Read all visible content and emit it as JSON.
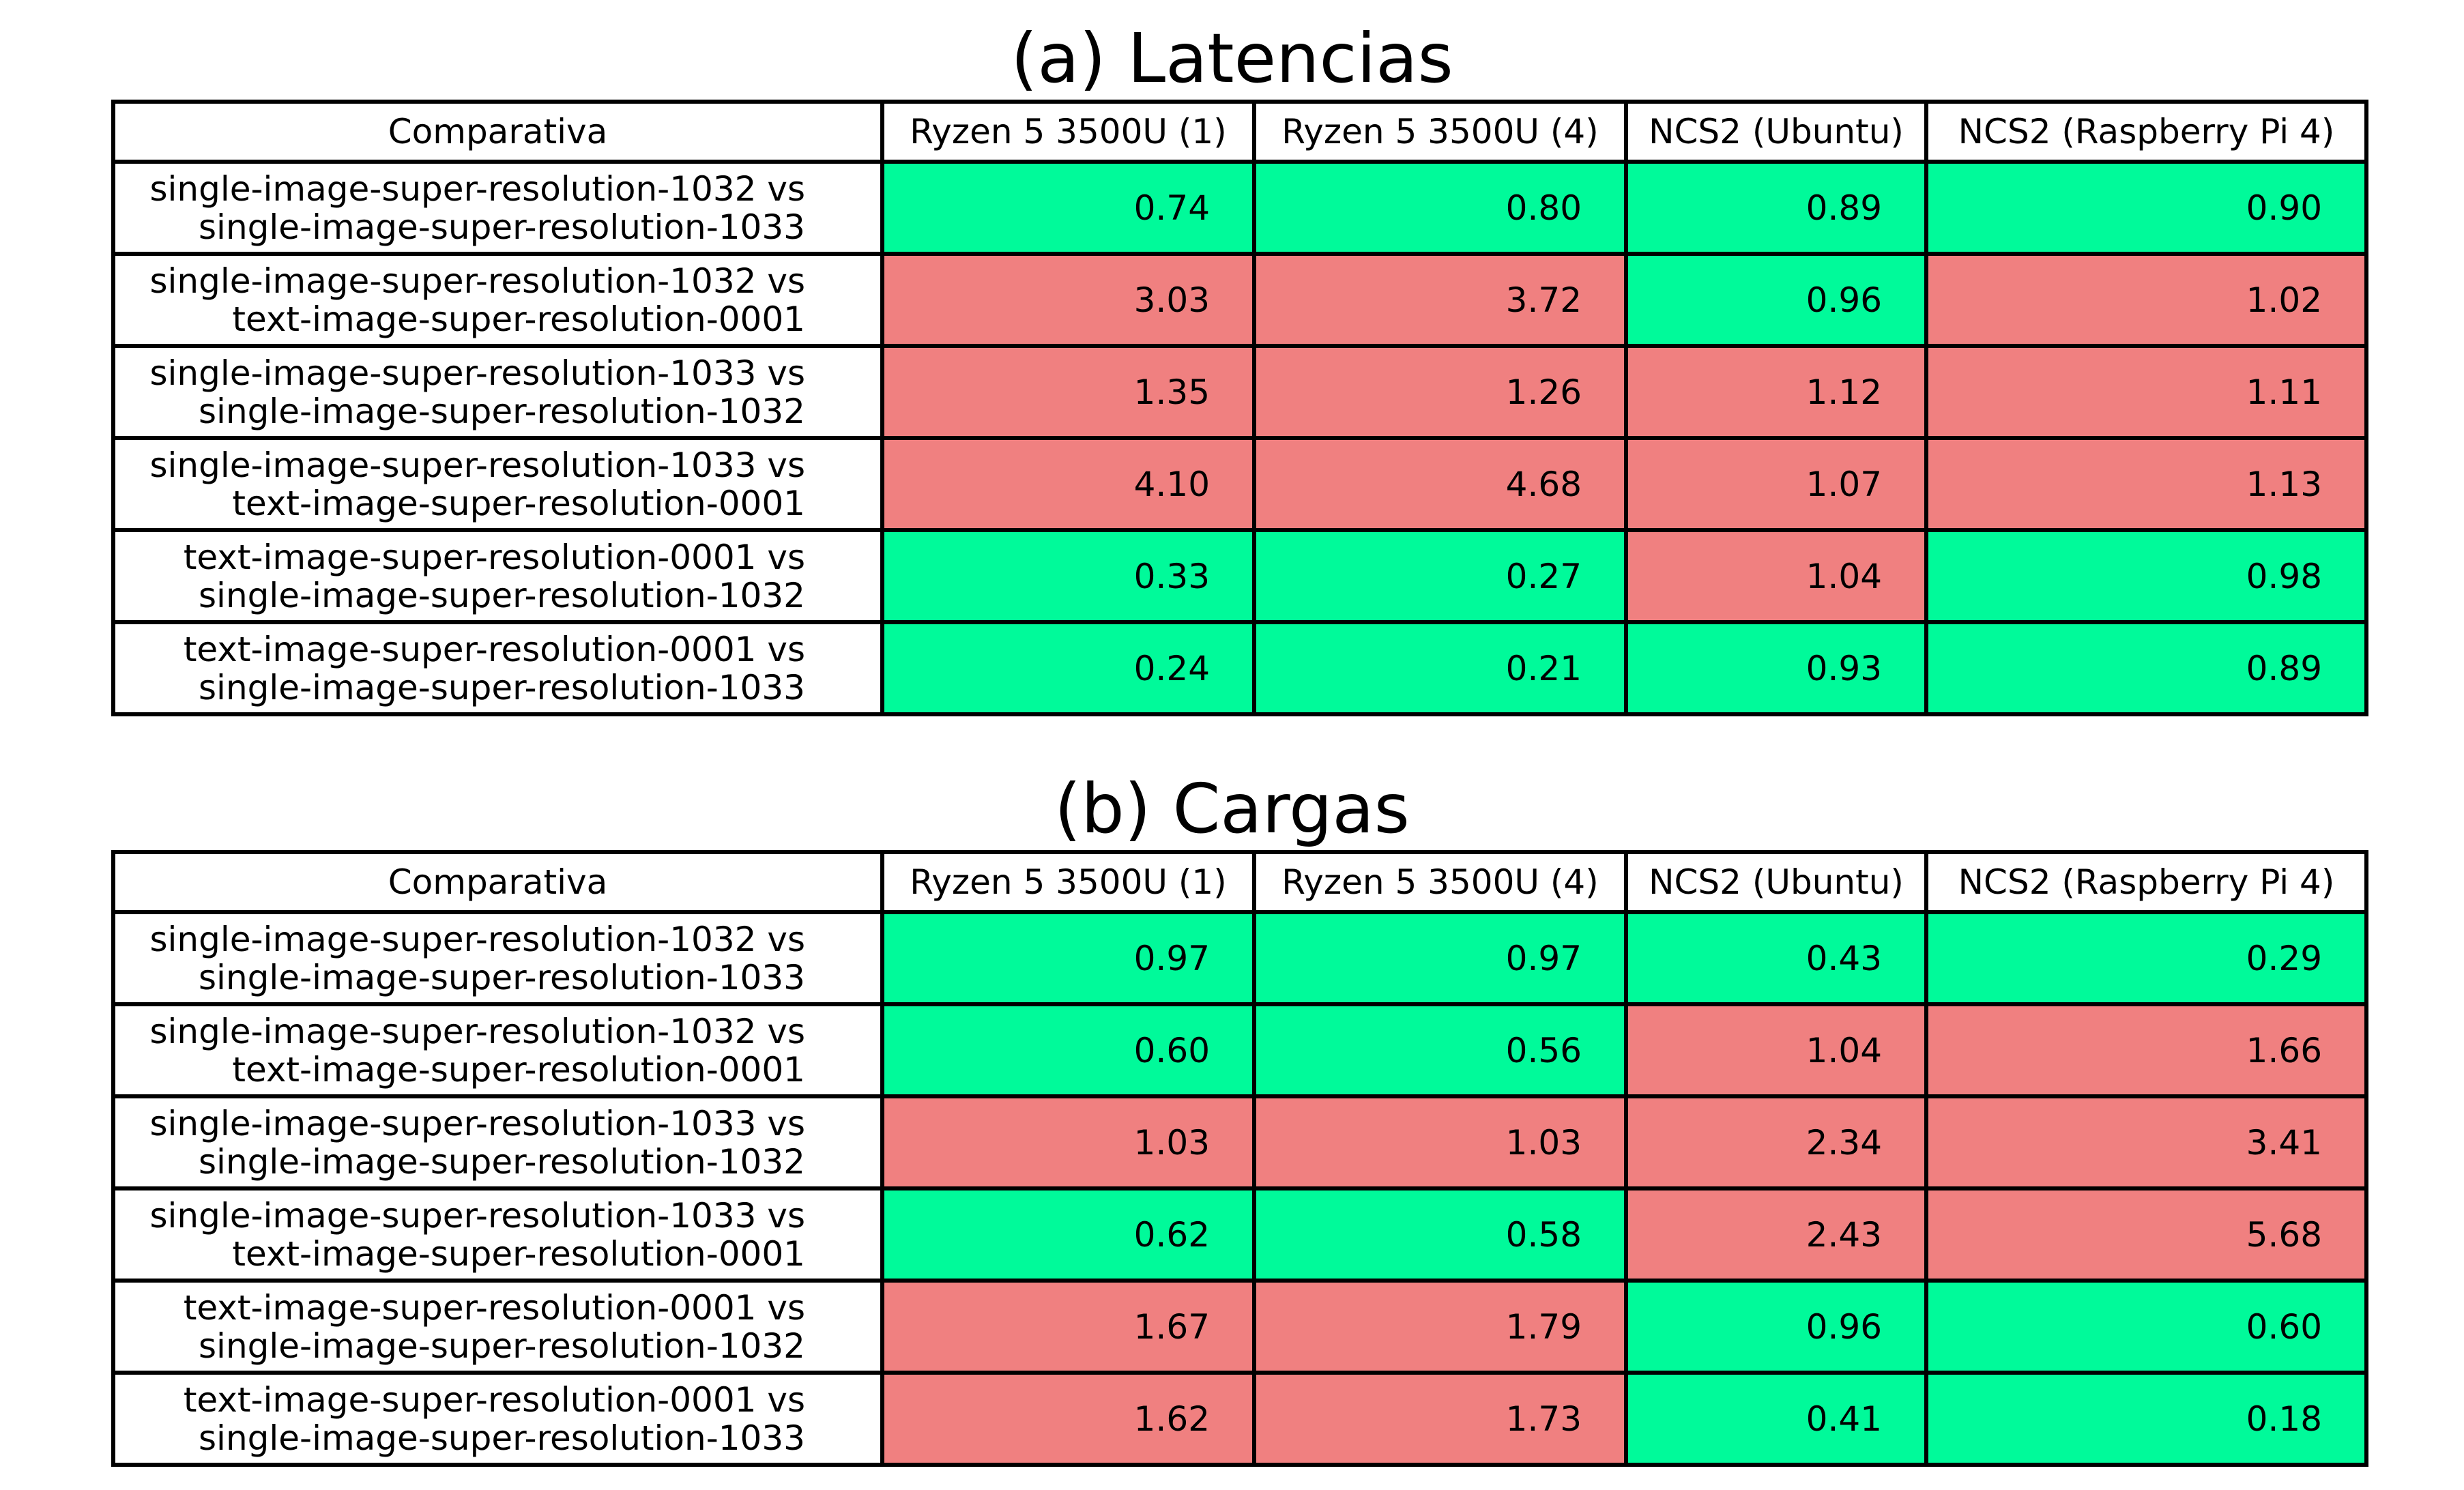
{
  "chart_data": [
    {
      "type": "table",
      "title": "(a) Latencias",
      "columns": [
        "Comparativa",
        "Ryzen 5 3500U (1)",
        "Ryzen 5 3500U (4)",
        "NCS2 (Ubuntu)",
        "NCS2 (Raspberry Pi 4)"
      ],
      "rows": [
        {
          "label_line1": "single-image-super-resolution-1032 vs",
          "label_line2": "single-image-super-resolution-1033",
          "values": [
            "0.74",
            "0.80",
            "0.89",
            "0.90"
          ]
        },
        {
          "label_line1": "single-image-super-resolution-1032 vs",
          "label_line2": "text-image-super-resolution-0001",
          "values": [
            "3.03",
            "3.72",
            "0.96",
            "1.02"
          ]
        },
        {
          "label_line1": "single-image-super-resolution-1033 vs",
          "label_line2": "single-image-super-resolution-1032",
          "values": [
            "1.35",
            "1.26",
            "1.12",
            "1.11"
          ]
        },
        {
          "label_line1": "single-image-super-resolution-1033 vs",
          "label_line2": "text-image-super-resolution-0001",
          "values": [
            "4.10",
            "4.68",
            "1.07",
            "1.13"
          ]
        },
        {
          "label_line1": "text-image-super-resolution-0001 vs",
          "label_line2": "single-image-super-resolution-1032",
          "values": [
            "0.33",
            "0.27",
            "1.04",
            "0.98"
          ]
        },
        {
          "label_line1": "text-image-super-resolution-0001 vs",
          "label_line2": "single-image-super-resolution-1033",
          "values": [
            "0.24",
            "0.21",
            "0.93",
            "0.89"
          ]
        }
      ]
    },
    {
      "type": "table",
      "title": "(b) Cargas",
      "columns": [
        "Comparativa",
        "Ryzen 5 3500U (1)",
        "Ryzen 5 3500U (4)",
        "NCS2 (Ubuntu)",
        "NCS2 (Raspberry Pi 4)"
      ],
      "rows": [
        {
          "label_line1": "single-image-super-resolution-1032 vs",
          "label_line2": "single-image-super-resolution-1033",
          "values": [
            "0.97",
            "0.97",
            "0.43",
            "0.29"
          ]
        },
        {
          "label_line1": "single-image-super-resolution-1032 vs",
          "label_line2": "text-image-super-resolution-0001",
          "values": [
            "0.60",
            "0.56",
            "1.04",
            "1.66"
          ]
        },
        {
          "label_line1": "single-image-super-resolution-1033 vs",
          "label_line2": "single-image-super-resolution-1032",
          "values": [
            "1.03",
            "1.03",
            "2.34",
            "3.41"
          ]
        },
        {
          "label_line1": "single-image-super-resolution-1033 vs",
          "label_line2": "text-image-super-resolution-0001",
          "values": [
            "0.62",
            "0.58",
            "2.43",
            "5.68"
          ]
        },
        {
          "label_line1": "text-image-super-resolution-0001 vs",
          "label_line2": "single-image-super-resolution-1032",
          "values": [
            "1.67",
            "1.79",
            "0.96",
            "0.60"
          ]
        },
        {
          "label_line1": "text-image-super-resolution-0001 vs",
          "label_line2": "single-image-super-resolution-1033",
          "values": [
            "1.62",
            "1.73",
            "0.41",
            "0.18"
          ]
        }
      ]
    }
  ],
  "colors": {
    "below_one": "#00fa9a",
    "above_one": "#f08080",
    "label_background": "#ffffff",
    "border": "#000000"
  }
}
